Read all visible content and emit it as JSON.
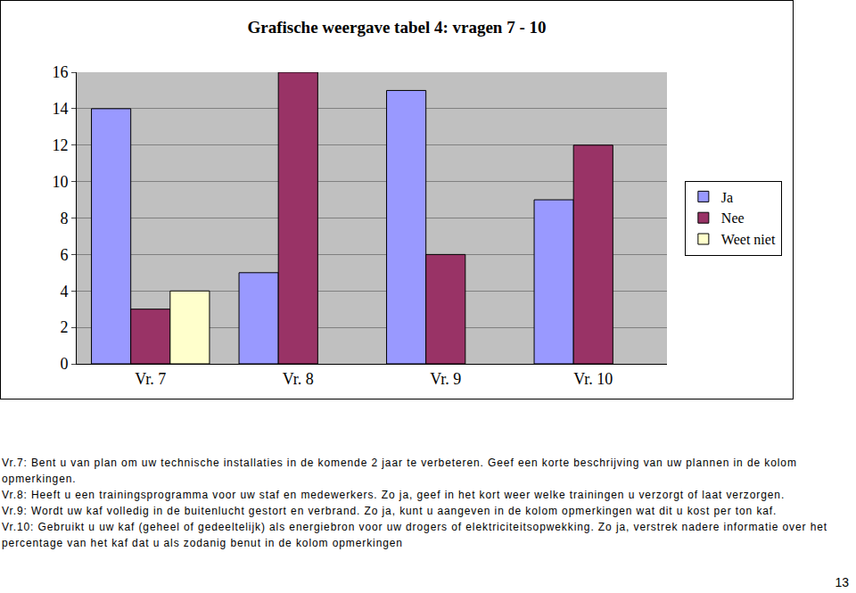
{
  "chart_data": {
    "type": "bar",
    "title": "Grafische weergave tabel 4: vragen 7 - 10",
    "categories": [
      "Vr. 7",
      "Vr. 8",
      "Vr. 9",
      "Vr. 10"
    ],
    "series": [
      {
        "name": "Ja",
        "color": "#9999ff",
        "values": [
          14,
          5,
          15,
          9
        ]
      },
      {
        "name": "Nee",
        "color": "#993366",
        "values": [
          3,
          16,
          6,
          12
        ]
      },
      {
        "name": "Weet niet",
        "color": "#ffffcc",
        "values": [
          4,
          null,
          null,
          null
        ]
      }
    ],
    "ylim": [
      0,
      16
    ],
    "yticks": [
      0,
      2,
      4,
      6,
      8,
      10,
      12,
      14,
      16
    ],
    "grid": true,
    "legend": "right"
  },
  "notes": [
    "Vr.7: Bent u van plan om uw technische installaties in de komende 2 jaar te verbeteren. Geef een korte beschrijving van uw plannen in de kolom opmerkingen.",
    "Vr.8: Heeft u een trainingsprogramma voor uw staf en medewerkers. Zo ja, geef in het kort weer welke trainingen u verzorgt of laat verzorgen.",
    "Vr.9: Wordt uw kaf volledig in de buitenlucht gestort en verbrand. Zo ja, kunt u aangeven in de kolom opmerkingen wat dit u kost per ton kaf.",
    "Vr.10: Gebruikt u uw kaf (geheel of gedeeltelijk) als energiebron voor uw drogers of elektriciteitsopwekking. Zo ja, verstrek nadere informatie over het percentage van het kaf dat u als zodanig benut in de kolom opmerkingen"
  ],
  "page_number": 13
}
